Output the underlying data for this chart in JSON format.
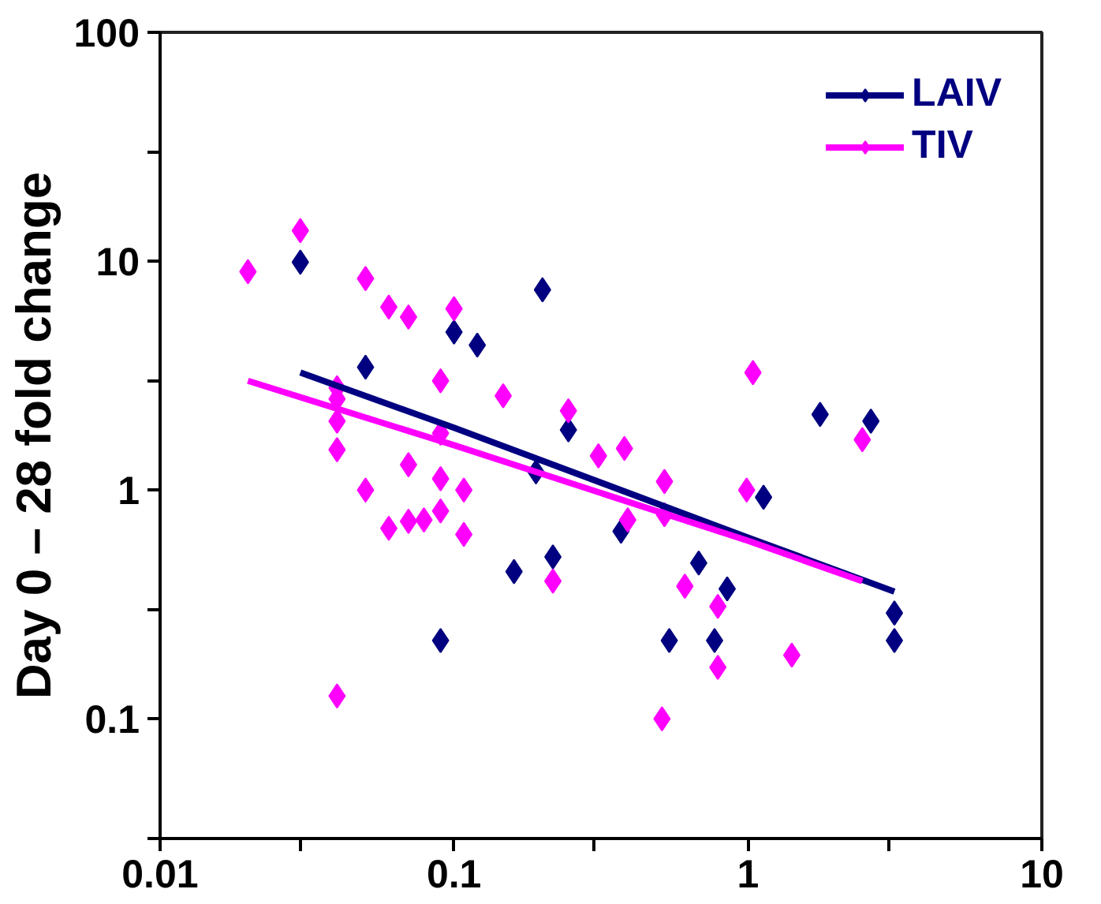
{
  "chart_data": {
    "type": "scatter",
    "ylabel": "Day 0 – 28 fold change",
    "log": "xy",
    "grid": false,
    "legend": "top right",
    "marker": "diamond",
    "xlim": [
      0.01,
      10
    ],
    "ylim": [
      0.03,
      100
    ],
    "xticks": [
      0.01,
      {
        "value": 0.03,
        "label": null
      },
      0.1,
      {
        "value": 0.3,
        "label": null
      },
      1,
      {
        "value": 3,
        "label": null
      },
      10
    ],
    "yticks": [
      {
        "value": 0.03,
        "label": null
      },
      0.1,
      {
        "value": 0.3,
        "label": null
      },
      1,
      {
        "value": 3,
        "label": null
      },
      10,
      {
        "value": 30,
        "label": null
      },
      100
    ],
    "series": [
      {
        "name": "LAIV",
        "color": "#000080",
        "x": [
          0.03,
          0.05,
          0.1,
          0.12,
          0.2,
          0.245,
          0.19,
          0.217,
          0.16,
          0.09,
          0.37,
          0.54,
          0.68,
          0.77,
          0.85,
          1.13,
          1.76,
          2.62,
          3.15,
          3.15
        ],
        "values": [
          9.9,
          3.44,
          4.9,
          4.3,
          7.5,
          1.83,
          1.2,
          0.51,
          0.44,
          0.22,
          0.66,
          0.22,
          0.48,
          0.22,
          0.37,
          0.93,
          2.14,
          2.0,
          0.29,
          0.22
        ]
      },
      {
        "name": "TIV",
        "color": "#ff00ff",
        "x": [
          0.0199,
          0.03,
          0.04,
          0.04,
          0.04,
          0.04,
          0.04,
          0.05,
          0.05,
          0.06,
          0.06,
          0.07,
          0.07,
          0.07,
          0.079,
          0.09,
          0.09,
          0.09,
          0.09,
          0.1,
          0.108,
          0.108,
          0.147,
          0.217,
          0.245,
          0.31,
          0.38,
          0.39,
          0.52,
          0.52,
          0.51,
          0.61,
          0.79,
          0.79,
          0.99,
          1.04,
          1.41,
          2.45
        ],
        "values": [
          9.0,
          13.6,
          2.8,
          2.5,
          2.0,
          1.5,
          0.126,
          8.4,
          1.0,
          6.3,
          0.68,
          5.7,
          1.29,
          0.73,
          0.74,
          3.0,
          1.77,
          1.12,
          0.81,
          6.2,
          1.0,
          0.64,
          2.58,
          0.4,
          2.22,
          1.41,
          1.52,
          0.74,
          1.09,
          0.78,
          0.1,
          0.38,
          0.31,
          0.168,
          1.0,
          3.26,
          0.19,
          1.66
        ]
      },
      {
        "type": "line",
        "marker": "none",
        "color": "#000080",
        "x": [
          0.03,
          0.1,
          1.0,
          3.15
        ],
        "values": [
          3.26,
          1.87,
          0.62,
          0.36
        ]
      },
      {
        "type": "line",
        "marker": "none",
        "color": "#ff00ff",
        "x": [
          0.0199,
          0.1,
          1.0,
          2.45
        ],
        "values": [
          3.0,
          1.57,
          0.6,
          0.4
        ]
      }
    ]
  }
}
